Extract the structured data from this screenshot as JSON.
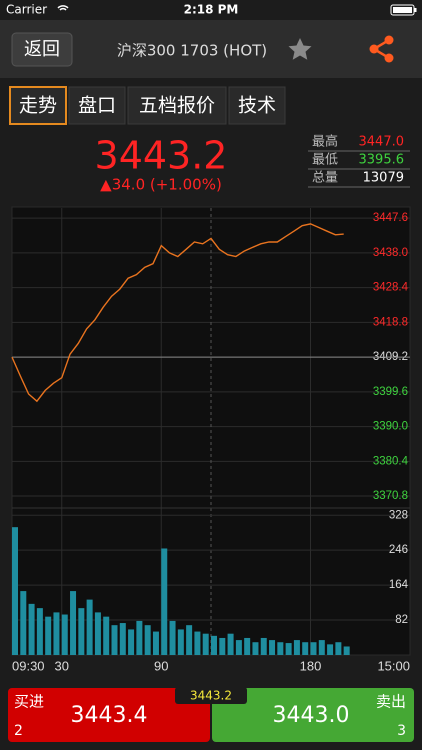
{
  "status_bar": {
    "carrier": "Carrier",
    "time": "2:18 PM"
  },
  "nav": {
    "back": "返回",
    "title": "沪深300 1703 (HOT)"
  },
  "tabs": [
    "走势",
    "盘口",
    "五档报价",
    "技术"
  ],
  "quote": {
    "price": "3443.2",
    "change": "▲34.0 (+1.00%)"
  },
  "stats": [
    [
      "最高",
      "3447.0"
    ],
    [
      "最低",
      "3395.6"
    ],
    [
      "总量",
      "13079"
    ]
  ],
  "chart_data": [
    {
      "type": "line",
      "color": "#e8731f",
      "x": [
        0,
        5,
        10,
        15,
        20,
        25,
        30,
        35,
        40,
        45,
        50,
        55,
        60,
        65,
        70,
        75,
        80,
        85,
        90,
        95,
        100,
        105,
        110,
        115,
        120,
        125,
        130,
        135,
        140,
        145,
        150,
        155,
        160,
        165,
        170,
        175,
        180,
        185,
        190,
        195,
        200
      ],
      "values": [
        3409.2,
        3404,
        3399,
        3397,
        3400,
        3402,
        3403.5,
        3410,
        3413,
        3417,
        3419.5,
        3423,
        3426,
        3428,
        3431,
        3432,
        3434,
        3435,
        3440,
        3438,
        3437,
        3439,
        3441,
        3440.5,
        3442,
        3439,
        3437.5,
        3437,
        3438.5,
        3439.5,
        3440.5,
        3441,
        3441,
        3442.5,
        3444,
        3445.5,
        3446,
        3445,
        3444,
        3443,
        3443.2
      ],
      "xlim": [
        0,
        240
      ],
      "xticks": [
        {
          "value": 0,
          "label": "09:30"
        },
        30,
        90,
        180,
        {
          "value": 240,
          "label": "15:00"
        }
      ],
      "session_break": 120,
      "baseline": 3409.2,
      "ylim": [
        3367.5,
        3450.4
      ],
      "yticks": [
        3447.6,
        {
          "value": 3438,
          "label": "3438.0"
        },
        3428.4,
        3418.8,
        3409.2,
        3399.6,
        {
          "value": 3390,
          "label": "3390.0"
        },
        3380.4,
        3370.8
      ],
      "grid": true
    },
    {
      "type": "bar",
      "color": "#1f8ea0",
      "x": [
        0,
        5,
        10,
        15,
        20,
        25,
        30,
        35,
        40,
        45,
        50,
        55,
        60,
        65,
        70,
        75,
        80,
        85,
        90,
        95,
        100,
        105,
        110,
        115,
        120,
        125,
        130,
        135,
        140,
        145,
        150,
        155,
        160,
        165,
        170,
        175,
        180,
        185,
        190,
        195,
        200
      ],
      "values": [
        300,
        150,
        120,
        110,
        90,
        100,
        95,
        150,
        110,
        130,
        100,
        90,
        70,
        75,
        60,
        80,
        70,
        55,
        250,
        80,
        60,
        70,
        55,
        50,
        45,
        40,
        50,
        35,
        40,
        30,
        40,
        35,
        30,
        28,
        35,
        30,
        30,
        35,
        25,
        30,
        20
      ],
      "xlim": [
        0,
        240
      ],
      "ylim": [
        0,
        345
      ],
      "yticks": [
        328,
        246,
        164,
        82
      ],
      "grid": true
    }
  ],
  "buy": {
    "label": "买进",
    "price": "3443.4",
    "qty": "2"
  },
  "sell": {
    "label": "卖出",
    "price": "3443.0",
    "qty": "3"
  },
  "last_price": "3443.2"
}
